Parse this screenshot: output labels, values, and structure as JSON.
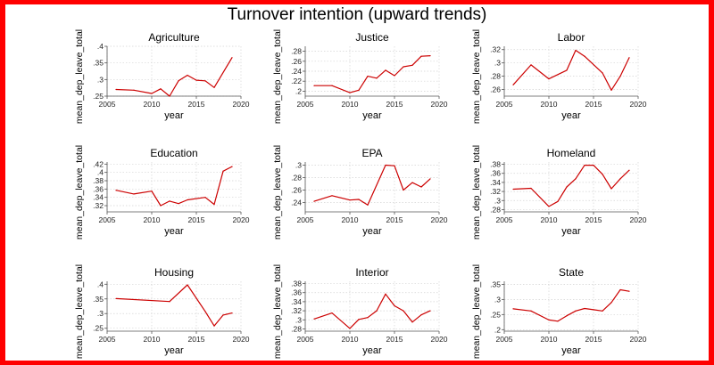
{
  "figure": {
    "title": "Turnover intention (upward trends)",
    "line_color": "#cc0000",
    "frame_color": "#ff0000"
  },
  "chart_data": [
    {
      "type": "line",
      "title": "Agriculture",
      "xlabel": "year",
      "ylabel": "mean_dep_leave_total",
      "xlim": [
        2005,
        2020
      ],
      "ylim": [
        0.25,
        0.4
      ],
      "grid": true,
      "xticks": [
        2005,
        2010,
        2015,
        2020
      ],
      "yticks": [
        0.25,
        0.3,
        0.35,
        0.4
      ],
      "ytick_labels": [
        ".25",
        ".3",
        ".35",
        ".4"
      ],
      "x": [
        2006,
        2008,
        2010,
        2011,
        2012,
        2013,
        2014,
        2015,
        2016,
        2017,
        2019
      ],
      "y": [
        0.27,
        0.268,
        0.258,
        0.272,
        0.25,
        0.296,
        0.313,
        0.298,
        0.296,
        0.276,
        0.366
      ]
    },
    {
      "type": "line",
      "title": "Justice",
      "xlabel": "year",
      "ylabel": "mean_dep_leave_total",
      "xlim": [
        2005,
        2020
      ],
      "ylim": [
        0.19,
        0.29
      ],
      "grid": true,
      "xticks": [
        2005,
        2010,
        2015,
        2020
      ],
      "yticks": [
        0.2,
        0.22,
        0.24,
        0.26,
        0.28
      ],
      "ytick_labels": [
        ".2",
        ".22",
        ".24",
        ".26",
        ".28"
      ],
      "x": [
        2006,
        2008,
        2010,
        2011,
        2012,
        2013,
        2014,
        2015,
        2016,
        2017,
        2018,
        2019
      ],
      "y": [
        0.211,
        0.211,
        0.197,
        0.202,
        0.23,
        0.226,
        0.242,
        0.231,
        0.249,
        0.252,
        0.27,
        0.271
      ]
    },
    {
      "type": "line",
      "title": "Labor",
      "xlabel": "year",
      "ylabel": "mean_dep_leave_total",
      "xlim": [
        2005,
        2020
      ],
      "ylim": [
        0.25,
        0.325
      ],
      "grid": true,
      "xticks": [
        2005,
        2010,
        2015,
        2020
      ],
      "yticks": [
        0.26,
        0.28,
        0.3,
        0.32
      ],
      "ytick_labels": [
        ".26",
        ".28",
        ".3",
        ".32"
      ],
      "x": [
        2006,
        2008,
        2010,
        2012,
        2013,
        2014,
        2016,
        2017,
        2018,
        2019
      ],
      "y": [
        0.267,
        0.297,
        0.276,
        0.289,
        0.319,
        0.31,
        0.285,
        0.259,
        0.28,
        0.308
      ]
    },
    {
      "type": "line",
      "title": "Education",
      "xlabel": "year",
      "ylabel": "mean_dep_leave_total",
      "xlim": [
        2005,
        2020
      ],
      "ylim": [
        0.305,
        0.425
      ],
      "grid": true,
      "xticks": [
        2005,
        2010,
        2015,
        2020
      ],
      "yticks": [
        0.32,
        0.34,
        0.36,
        0.38,
        0.4,
        0.42
      ],
      "ytick_labels": [
        ".32",
        ".34",
        ".36",
        ".38",
        ".4",
        ".42"
      ],
      "x": [
        2006,
        2008,
        2010,
        2011,
        2012,
        2013,
        2014,
        2016,
        2017,
        2018,
        2019
      ],
      "y": [
        0.357,
        0.348,
        0.355,
        0.32,
        0.331,
        0.325,
        0.334,
        0.34,
        0.323,
        0.403,
        0.414
      ]
    },
    {
      "type": "line",
      "title": "EPA",
      "xlabel": "year",
      "ylabel": "mean_dep_leave_total",
      "xlim": [
        2005,
        2020
      ],
      "ylim": [
        0.225,
        0.305
      ],
      "grid": true,
      "xticks": [
        2005,
        2010,
        2015,
        2020
      ],
      "yticks": [
        0.24,
        0.26,
        0.28,
        0.3
      ],
      "ytick_labels": [
        ".24",
        ".26",
        ".28",
        ".3"
      ],
      "x": [
        2006,
        2008,
        2010,
        2011,
        2012,
        2014,
        2015,
        2016,
        2017,
        2018,
        2019
      ],
      "y": [
        0.242,
        0.251,
        0.244,
        0.245,
        0.236,
        0.3,
        0.299,
        0.26,
        0.272,
        0.265,
        0.278
      ]
    },
    {
      "type": "line",
      "title": "Homeland",
      "xlabel": "year",
      "ylabel": "mean_dep_leave_total",
      "xlim": [
        2005,
        2020
      ],
      "ylim": [
        0.275,
        0.385
      ],
      "grid": true,
      "xticks": [
        2005,
        2010,
        2015,
        2020
      ],
      "yticks": [
        0.28,
        0.3,
        0.32,
        0.34,
        0.36,
        0.38
      ],
      "ytick_labels": [
        ".28",
        ".3",
        ".32",
        ".34",
        ".36",
        ".38"
      ],
      "x": [
        2006,
        2008,
        2010,
        2011,
        2012,
        2013,
        2014,
        2015,
        2016,
        2017,
        2018,
        2019
      ],
      "y": [
        0.325,
        0.327,
        0.287,
        0.298,
        0.33,
        0.348,
        0.378,
        0.378,
        0.358,
        0.326,
        0.348,
        0.367
      ]
    },
    {
      "type": "line",
      "title": "Housing",
      "xlabel": "year",
      "ylabel": "mean_dep_leave_total",
      "xlim": [
        2005,
        2020
      ],
      "ylim": [
        0.24,
        0.41
      ],
      "grid": true,
      "xticks": [
        2005,
        2010,
        2015,
        2020
      ],
      "yticks": [
        0.25,
        0.3,
        0.35,
        0.4
      ],
      "ytick_labels": [
        ".25",
        ".3",
        ".35",
        ".4"
      ],
      "x": [
        2006,
        2012,
        2014,
        2016,
        2017,
        2018,
        2019
      ],
      "y": [
        0.351,
        0.341,
        0.398,
        0.307,
        0.258,
        0.295,
        0.302
      ]
    },
    {
      "type": "line",
      "title": "Interior",
      "xlabel": "year",
      "ylabel": "mean_dep_leave_total",
      "xlim": [
        2005,
        2020
      ],
      "ylim": [
        0.275,
        0.385
      ],
      "grid": true,
      "xticks": [
        2005,
        2010,
        2015,
        2020
      ],
      "yticks": [
        0.28,
        0.3,
        0.32,
        0.34,
        0.36,
        0.38
      ],
      "ytick_labels": [
        ".28",
        ".3",
        ".32",
        ".34",
        ".36",
        ".38"
      ],
      "x": [
        2006,
        2008,
        2010,
        2011,
        2012,
        2013,
        2014,
        2015,
        2016,
        2017,
        2018,
        2019
      ],
      "y": [
        0.302,
        0.315,
        0.281,
        0.301,
        0.305,
        0.32,
        0.357,
        0.331,
        0.32,
        0.295,
        0.311,
        0.32
      ]
    },
    {
      "type": "line",
      "title": "State",
      "xlabel": "year",
      "ylabel": "mean_dep_leave_total",
      "xlim": [
        2005,
        2020
      ],
      "ylim": [
        0.195,
        0.36
      ],
      "grid": true,
      "xticks": [
        2005,
        2010,
        2015,
        2020
      ],
      "yticks": [
        0.2,
        0.25,
        0.3,
        0.35
      ],
      "ytick_labels": [
        ".2",
        ".25",
        ".3",
        ".35"
      ],
      "x": [
        2006,
        2008,
        2010,
        2011,
        2012,
        2013,
        2014,
        2015,
        2016,
        2017,
        2018,
        2019
      ],
      "y": [
        0.269,
        0.262,
        0.232,
        0.228,
        0.246,
        0.262,
        0.27,
        0.266,
        0.262,
        0.29,
        0.332,
        0.327
      ]
    }
  ]
}
